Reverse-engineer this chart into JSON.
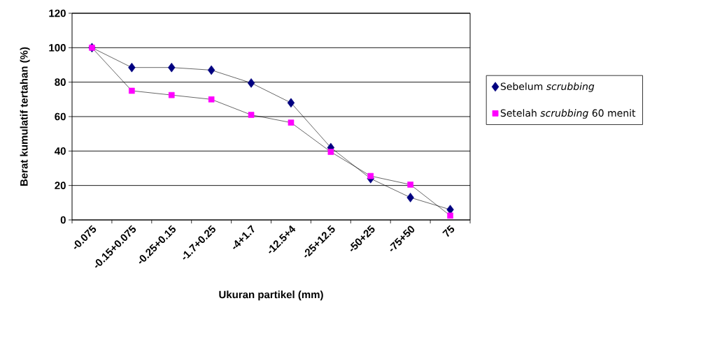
{
  "chart_data": {
    "type": "line",
    "xlabel": "Ukuran partikel (mm)",
    "ylabel": "Berat kumulatif tertahan (%)",
    "categories": [
      "-0.075",
      "-0.15+0.075",
      "-0.25+0.15",
      "-1.7+0.25",
      "-4+1.7",
      "-12.5+4",
      "-25+12.5",
      "-50+25",
      "-75+50",
      "75"
    ],
    "series": [
      {
        "name": "Sebelum *scrubbing*",
        "color": "#000080",
        "marker": "diamond",
        "values": [
          100,
          88.5,
          88.5,
          87,
          79.5,
          68,
          42,
          24,
          13,
          6
        ]
      },
      {
        "name": "Setelah  *scrubbing* 60 menit",
        "color": "#ff00ff",
        "marker": "square",
        "values": [
          100,
          75,
          72.5,
          70,
          61,
          56.5,
          39.5,
          25.5,
          20.5,
          2.5
        ]
      }
    ],
    "ylim": [
      0,
      120
    ],
    "yticks": [
      0,
      20,
      40,
      60,
      80,
      100,
      120
    ],
    "grid": "y",
    "legend": "right"
  }
}
